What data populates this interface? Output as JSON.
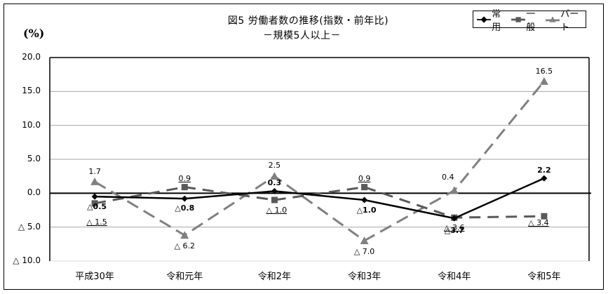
{
  "chart_data": {
    "type": "line",
    "title": "図5 労働者数の推移(指数・前年比)",
    "subtitle": "－規模5人以上－",
    "xlabel": "",
    "ylabel": "(%)",
    "ylim": [
      -10.0,
      20.0
    ],
    "yticks": [
      20.0,
      15.0,
      10.0,
      5.0,
      0.0,
      -5.0,
      -10.0
    ],
    "ytick_labels": [
      "20.0",
      "15.0",
      "10.0",
      "5.0",
      "0.0",
      "△ 5.0",
      "△ 10.0"
    ],
    "grid": true,
    "legend_position": "top-right",
    "categories": [
      "平成30年",
      "令和元年",
      "令和2年",
      "令和3年",
      "令和4年",
      "令和5年"
    ],
    "series": [
      {
        "name": "常用",
        "color": "#000000",
        "marker": "diamond",
        "line_style": "solid",
        "values": [
          -0.5,
          -0.8,
          0.3,
          -1.0,
          -3.7,
          2.2
        ],
        "labels": [
          "△0.5",
          "△0.8",
          "0.3",
          "△1.0",
          "△3.7",
          "2.2"
        ]
      },
      {
        "name": "一般",
        "color": "#595959",
        "marker": "square",
        "line_style": "dashed",
        "values": [
          -1.5,
          0.9,
          -1.0,
          0.9,
          -3.6,
          -3.4
        ],
        "labels": [
          "△ 1.5",
          "0.9",
          "△ 1.0",
          "0.9",
          "△ 3.6",
          "△ 3.4"
        ]
      },
      {
        "name": "パート",
        "color": "#808080",
        "marker": "triangle",
        "line_style": "dashed",
        "values": [
          1.7,
          -6.2,
          2.5,
          -7.0,
          0.4,
          16.5
        ],
        "labels": [
          "1.7",
          "△ 6.2",
          "2.5",
          "△ 7.0",
          "0.4",
          "16.5"
        ]
      }
    ]
  },
  "header": {
    "title": "図5  労働者数の推移(指数・前年比)",
    "subtitle": "－規模5人以上－",
    "unit": "(%)"
  },
  "legend": {
    "items": [
      {
        "label": "常用"
      },
      {
        "label": "一般"
      },
      {
        "label": "パート"
      }
    ]
  }
}
